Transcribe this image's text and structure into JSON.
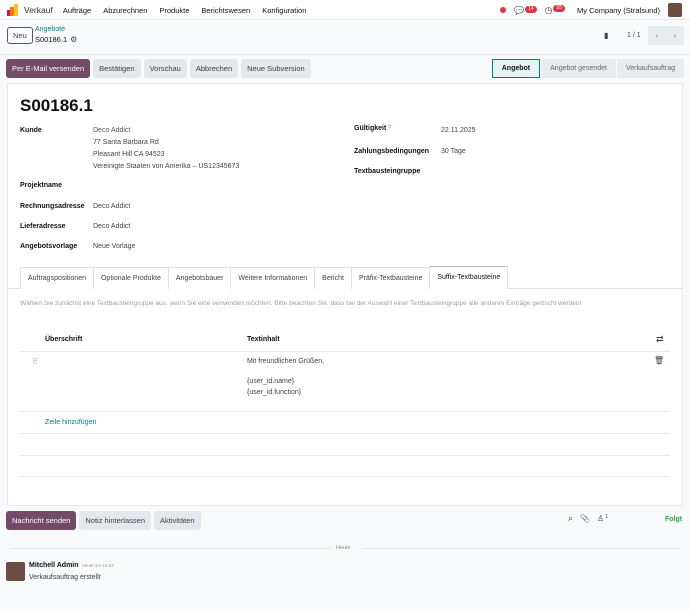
{
  "nav": {
    "app": "Verkauf",
    "menu": [
      "Aufträge",
      "Abzurechnen",
      "Produkte",
      "Berichtswesen",
      "Konfiguration"
    ],
    "messages_count": "14",
    "activities_count": "55",
    "company": "My Company (Stralsund)"
  },
  "breadcrumb": {
    "new": "Neu",
    "parent": "Angebote",
    "current": "S00186.1",
    "pager": "1 / 1"
  },
  "actions": [
    "Per E-Mail versenden",
    "Bestätigen",
    "Vorschau",
    "Abbrechen",
    "Neue Subversion"
  ],
  "status": [
    "Angebot",
    "Angebot gesendet",
    "Verkaufsauftrag"
  ],
  "form": {
    "title": "S00186.1",
    "customer_label": "Kunde",
    "customer": [
      "Deco Addict",
      "77 Santa Barbara Rd",
      "Pleasant Hill CA 94523",
      "Vereinigte Staaten von Amerika – US12345673"
    ],
    "project_label": "Projektname",
    "invoice_label": "Rechnungsadresse",
    "invoice": "Deco Addict",
    "delivery_label": "Lieferadresse",
    "delivery": "Deco Addict",
    "template_label": "Angebotsvorlage",
    "template": "Neue Vorlage",
    "validity_label": "Gültigkeit",
    "validity_help": "?",
    "validity": "22.11.2025",
    "payment_label": "Zahlungsbedingungen",
    "payment": "30 Tage",
    "textgroup_label": "Textbausteingruppe"
  },
  "tabs": [
    "Auftragspositionen",
    "Optionale Produkte",
    "Angebotsbauer",
    "Weitere Informationen",
    "Bericht",
    "Präfix-Textbausteine",
    "Suffix-Textbausteine"
  ],
  "active_tab": 6,
  "notice": "Wählen Sie zunächst eine Textbausteingruppe aus, wenn Sie eine verwenden möchten. Bitte beachten Sie, dass bei der Auswahl einer Textbausteingruppe alle anderen Einträge gelöscht werden!",
  "table": {
    "headers": [
      "Überschrift",
      "Textinhalt"
    ],
    "rows": [
      {
        "heading": "",
        "text": [
          "Mit freundlichen Grüßen,",
          "{user_id.name}",
          "{user_id.function}"
        ]
      }
    ],
    "add_line": "Zeile hinzufügen"
  },
  "chatter": {
    "send": "Nachricht senden",
    "note": "Notiz hinterlassen",
    "activities": "Aktivitäten",
    "followers": "1",
    "follow": "Folgt",
    "date_sep": "Heute",
    "author": "Mitchell Admin",
    "time": "Heute um 15:53",
    "message": "Verkaufsauftrag erstellt"
  },
  "colors": {
    "primary": "#714b67",
    "link": "#017e84",
    "follow": "#28a745",
    "badge": "#dc3545"
  }
}
